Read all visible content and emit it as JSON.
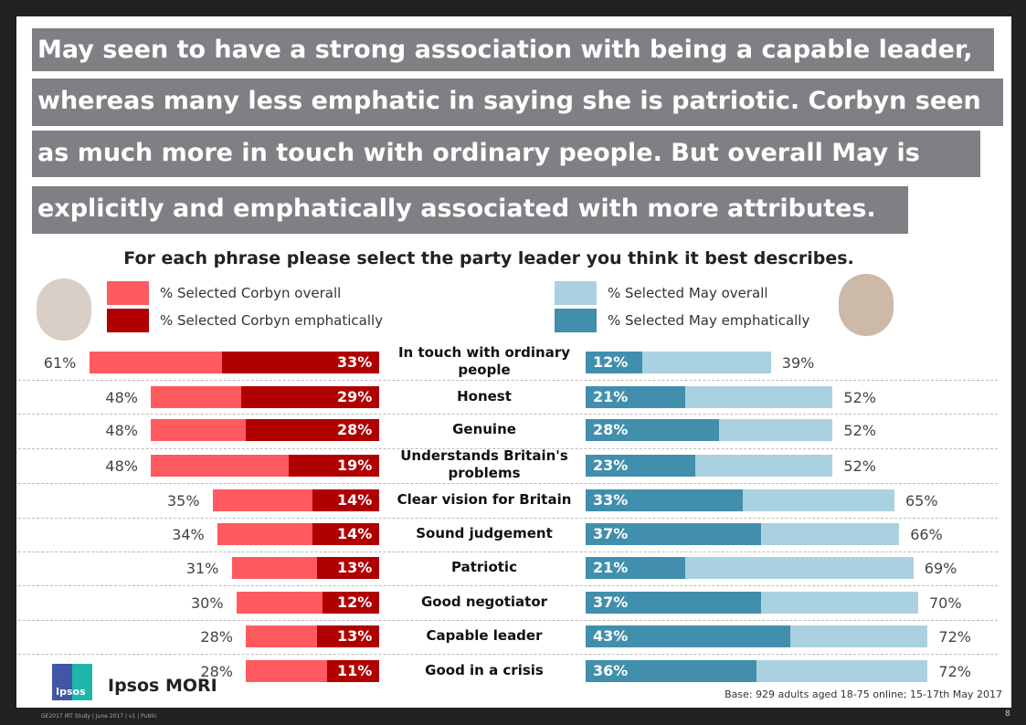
{
  "headline": [
    "May seen to have a strong association with being a capable leader,",
    "whereas many less emphatic in saying she is patriotic. Corbyn seen",
    "as much more in touch with ordinary people. But overall May is",
    "explicitly and emphatically associated with more attributes."
  ],
  "chart_data": {
    "type": "bar",
    "title": "For each phrase please select the party leader you think it best describes.",
    "categories": [
      "In touch with ordinary people",
      "Honest",
      "Genuine",
      "Understands Britain's problems",
      "Clear vision for Britain",
      "Sound judgement",
      "Patriotic",
      "Good negotiator",
      "Capable leader",
      "Good in a crisis"
    ],
    "series": [
      {
        "name": "% Selected Corbyn overall",
        "color": "#ff5a5f",
        "values": [
          61,
          48,
          48,
          48,
          35,
          34,
          31,
          30,
          28,
          28
        ]
      },
      {
        "name": "% Selected Corbyn emphatically",
        "color": "#b00000",
        "values": [
          33,
          29,
          28,
          19,
          14,
          14,
          13,
          12,
          13,
          11
        ]
      },
      {
        "name": "% Selected May overall",
        "color": "#a9d1e0",
        "values": [
          39,
          52,
          52,
          52,
          65,
          66,
          69,
          70,
          72,
          72
        ]
      },
      {
        "name": "% Selected May emphatically",
        "color": "#418fac",
        "values": [
          12,
          21,
          28,
          23,
          33,
          37,
          21,
          37,
          43,
          36
        ]
      }
    ]
  },
  "base_note": "Base: 929 adults aged 18-75 online; 15-17th May 2017",
  "logo": {
    "badge": "Ipsos",
    "name": "Ipsos MORI"
  },
  "footer": "GE2017 IRT Study | June 2017 | v1 | Public",
  "page_number": "8"
}
